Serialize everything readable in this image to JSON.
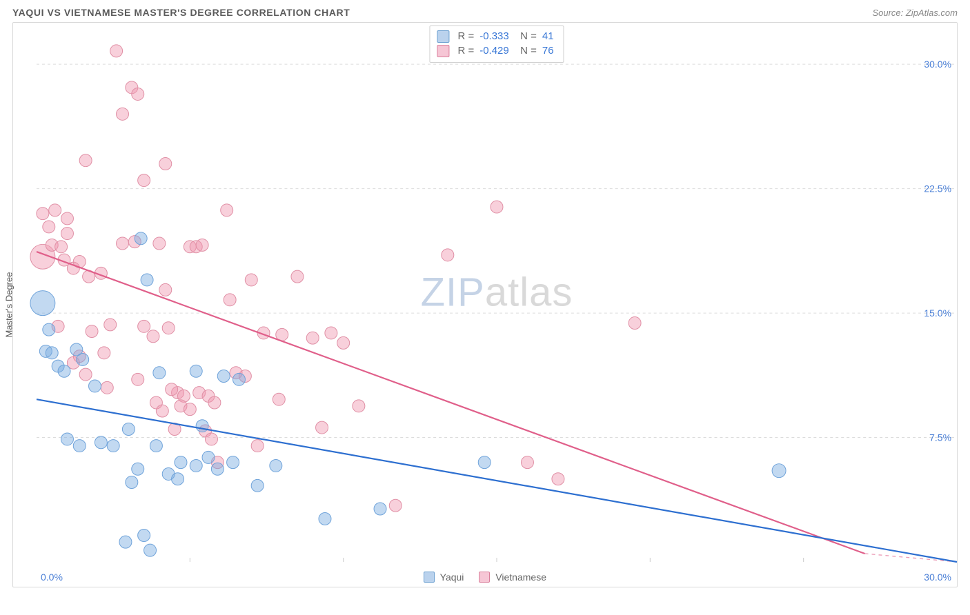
{
  "header": {
    "title": "YAQUI VS VIETNAMESE MASTER'S DEGREE CORRELATION CHART",
    "source_prefix": "Source: ",
    "source_name": "ZipAtlas.com"
  },
  "axes": {
    "y_label": "Master's Degree",
    "x_min_label": "0.0%",
    "x_max_label": "30.0%",
    "xlim": [
      0,
      30
    ],
    "ylim": [
      0,
      32.5
    ],
    "y_ticks": [
      {
        "v": 7.5,
        "label": "7.5%"
      },
      {
        "v": 15.0,
        "label": "15.0%"
      },
      {
        "v": 22.5,
        "label": "22.5%"
      },
      {
        "v": 30.0,
        "label": "30.0%"
      }
    ],
    "x_tick_step": 5,
    "tick_label_color": "#4a7fd6",
    "grid_color": "#dcdcdc"
  },
  "series": {
    "yaqui": {
      "label": "Yaqui",
      "fill": "rgba(120,170,225,0.45)",
      "stroke": "#6fa3da",
      "swatch_fill": "rgba(140,180,225,0.6)",
      "swatch_border": "#6b9fd0",
      "line_color": "#2d6fd0",
      "R": "-0.333",
      "N": "41",
      "trend": {
        "x1": 0,
        "y1": 9.8,
        "x2": 30,
        "y2": 0.0
      },
      "points": [
        {
          "x": 0.2,
          "y": 15.6,
          "r": 18
        },
        {
          "x": 0.3,
          "y": 12.7,
          "r": 9
        },
        {
          "x": 0.5,
          "y": 12.6,
          "r": 9
        },
        {
          "x": 0.7,
          "y": 11.8,
          "r": 9
        },
        {
          "x": 0.9,
          "y": 11.5,
          "r": 9
        },
        {
          "x": 0.4,
          "y": 14.0,
          "r": 9
        },
        {
          "x": 1.3,
          "y": 12.8,
          "r": 9
        },
        {
          "x": 1.5,
          "y": 12.2,
          "r": 9
        },
        {
          "x": 1.9,
          "y": 10.6,
          "r": 9
        },
        {
          "x": 1.0,
          "y": 7.4,
          "r": 9
        },
        {
          "x": 1.4,
          "y": 7.0,
          "r": 9
        },
        {
          "x": 2.1,
          "y": 7.2,
          "r": 9
        },
        {
          "x": 2.5,
          "y": 7.0,
          "r": 9
        },
        {
          "x": 3.4,
          "y": 19.5,
          "r": 9
        },
        {
          "x": 3.6,
          "y": 17.0,
          "r": 9
        },
        {
          "x": 3.0,
          "y": 8.0,
          "r": 9
        },
        {
          "x": 3.9,
          "y": 7.0,
          "r": 9
        },
        {
          "x": 3.1,
          "y": 4.8,
          "r": 9
        },
        {
          "x": 2.9,
          "y": 1.2,
          "r": 9
        },
        {
          "x": 3.5,
          "y": 1.6,
          "r": 9
        },
        {
          "x": 3.7,
          "y": 0.7,
          "r": 9
        },
        {
          "x": 4.0,
          "y": 11.4,
          "r": 9
        },
        {
          "x": 4.3,
          "y": 5.3,
          "r": 9
        },
        {
          "x": 3.3,
          "y": 5.6,
          "r": 9
        },
        {
          "x": 4.7,
          "y": 6.0,
          "r": 9
        },
        {
          "x": 4.6,
          "y": 5.0,
          "r": 9
        },
        {
          "x": 5.2,
          "y": 11.5,
          "r": 9
        },
        {
          "x": 5.4,
          "y": 8.2,
          "r": 9
        },
        {
          "x": 5.6,
          "y": 6.3,
          "r": 9
        },
        {
          "x": 5.2,
          "y": 5.8,
          "r": 9
        },
        {
          "x": 5.9,
          "y": 5.6,
          "r": 9
        },
        {
          "x": 6.4,
          "y": 6.0,
          "r": 9
        },
        {
          "x": 6.1,
          "y": 11.2,
          "r": 9
        },
        {
          "x": 6.6,
          "y": 11.0,
          "r": 9
        },
        {
          "x": 7.2,
          "y": 4.6,
          "r": 9
        },
        {
          "x": 7.8,
          "y": 5.8,
          "r": 9
        },
        {
          "x": 9.4,
          "y": 2.6,
          "r": 9
        },
        {
          "x": 11.2,
          "y": 3.2,
          "r": 9
        },
        {
          "x": 14.6,
          "y": 6.0,
          "r": 9
        },
        {
          "x": 24.2,
          "y": 5.5,
          "r": 10
        }
      ]
    },
    "vietnamese": {
      "label": "Vietnamese",
      "fill": "rgba(240,150,175,0.45)",
      "stroke": "#e08fa5",
      "swatch_fill": "rgba(240,160,185,0.6)",
      "swatch_border": "#da7f9b",
      "line_color": "#e05f8a",
      "R": "-0.429",
      "N": "76",
      "trend": {
        "x1": 0,
        "y1": 18.7,
        "x2": 27.0,
        "y2": 0.5
      },
      "trend_dash_ext": {
        "x1": 27.0,
        "y1": 0.5,
        "x2": 30.0,
        "y2": 0.0
      },
      "points": [
        {
          "x": 0.2,
          "y": 18.4,
          "r": 18
        },
        {
          "x": 0.2,
          "y": 21.0,
          "r": 9
        },
        {
          "x": 0.4,
          "y": 20.2,
          "r": 9
        },
        {
          "x": 0.6,
          "y": 21.2,
          "r": 9
        },
        {
          "x": 0.5,
          "y": 19.1,
          "r": 9
        },
        {
          "x": 0.8,
          "y": 19.0,
          "r": 9
        },
        {
          "x": 1.0,
          "y": 19.8,
          "r": 9
        },
        {
          "x": 1.0,
          "y": 20.7,
          "r": 9
        },
        {
          "x": 0.7,
          "y": 14.2,
          "r": 9
        },
        {
          "x": 0.9,
          "y": 18.2,
          "r": 9
        },
        {
          "x": 1.6,
          "y": 24.2,
          "r": 9
        },
        {
          "x": 1.2,
          "y": 17.7,
          "r": 9
        },
        {
          "x": 1.4,
          "y": 18.1,
          "r": 9
        },
        {
          "x": 1.7,
          "y": 17.2,
          "r": 9
        },
        {
          "x": 1.2,
          "y": 12.0,
          "r": 9
        },
        {
          "x": 1.4,
          "y": 12.4,
          "r": 9
        },
        {
          "x": 1.6,
          "y": 11.3,
          "r": 9
        },
        {
          "x": 1.8,
          "y": 13.9,
          "r": 9
        },
        {
          "x": 2.3,
          "y": 10.5,
          "r": 9
        },
        {
          "x": 2.1,
          "y": 17.4,
          "r": 9
        },
        {
          "x": 2.6,
          "y": 30.8,
          "r": 9
        },
        {
          "x": 2.8,
          "y": 27.0,
          "r": 9
        },
        {
          "x": 2.8,
          "y": 19.2,
          "r": 9
        },
        {
          "x": 2.4,
          "y": 14.3,
          "r": 9
        },
        {
          "x": 2.2,
          "y": 12.6,
          "r": 9
        },
        {
          "x": 3.1,
          "y": 28.6,
          "r": 9
        },
        {
          "x": 3.3,
          "y": 28.2,
          "r": 9
        },
        {
          "x": 3.2,
          "y": 19.3,
          "r": 9
        },
        {
          "x": 3.5,
          "y": 23.0,
          "r": 9
        },
        {
          "x": 3.5,
          "y": 14.2,
          "r": 9
        },
        {
          "x": 3.3,
          "y": 11.0,
          "r": 9
        },
        {
          "x": 3.8,
          "y": 13.6,
          "r": 9
        },
        {
          "x": 3.9,
          "y": 9.6,
          "r": 9
        },
        {
          "x": 4.2,
          "y": 24.0,
          "r": 9
        },
        {
          "x": 4.0,
          "y": 19.2,
          "r": 9
        },
        {
          "x": 4.2,
          "y": 16.4,
          "r": 9
        },
        {
          "x": 4.3,
          "y": 14.1,
          "r": 9
        },
        {
          "x": 4.1,
          "y": 9.1,
          "r": 9
        },
        {
          "x": 4.5,
          "y": 8.0,
          "r": 9
        },
        {
          "x": 4.6,
          "y": 10.2,
          "r": 9
        },
        {
          "x": 4.4,
          "y": 10.4,
          "r": 9
        },
        {
          "x": 4.8,
          "y": 10.0,
          "r": 9
        },
        {
          "x": 4.7,
          "y": 9.4,
          "r": 9
        },
        {
          "x": 5.0,
          "y": 9.2,
          "r": 9
        },
        {
          "x": 5.0,
          "y": 19.0,
          "r": 9
        },
        {
          "x": 5.2,
          "y": 19.0,
          "r": 9
        },
        {
          "x": 5.4,
          "y": 19.1,
          "r": 9
        },
        {
          "x": 5.3,
          "y": 10.2,
          "r": 9
        },
        {
          "x": 5.6,
          "y": 10.0,
          "r": 9
        },
        {
          "x": 5.8,
          "y": 9.6,
          "r": 9
        },
        {
          "x": 5.5,
          "y": 7.9,
          "r": 9
        },
        {
          "x": 5.7,
          "y": 7.4,
          "r": 9
        },
        {
          "x": 5.9,
          "y": 6.0,
          "r": 9
        },
        {
          "x": 6.2,
          "y": 21.2,
          "r": 9
        },
        {
          "x": 6.3,
          "y": 15.8,
          "r": 9
        },
        {
          "x": 6.5,
          "y": 11.4,
          "r": 9
        },
        {
          "x": 6.8,
          "y": 11.2,
          "r": 9
        },
        {
          "x": 7.0,
          "y": 17.0,
          "r": 9
        },
        {
          "x": 7.4,
          "y": 13.8,
          "r": 9
        },
        {
          "x": 7.2,
          "y": 7.0,
          "r": 9
        },
        {
          "x": 7.9,
          "y": 9.8,
          "r": 9
        },
        {
          "x": 8.0,
          "y": 13.7,
          "r": 9
        },
        {
          "x": 8.5,
          "y": 17.2,
          "r": 9
        },
        {
          "x": 9.0,
          "y": 13.5,
          "r": 9
        },
        {
          "x": 9.6,
          "y": 13.8,
          "r": 9
        },
        {
          "x": 9.3,
          "y": 8.1,
          "r": 9
        },
        {
          "x": 10.0,
          "y": 13.2,
          "r": 9
        },
        {
          "x": 10.5,
          "y": 9.4,
          "r": 9
        },
        {
          "x": 11.7,
          "y": 3.4,
          "r": 9
        },
        {
          "x": 13.4,
          "y": 18.5,
          "r": 9
        },
        {
          "x": 15.0,
          "y": 21.4,
          "r": 9
        },
        {
          "x": 16.0,
          "y": 6.0,
          "r": 9
        },
        {
          "x": 17.0,
          "y": 5.0,
          "r": 9
        },
        {
          "x": 19.5,
          "y": 14.4,
          "r": 9
        }
      ]
    }
  },
  "watermark": {
    "zip": "ZIP",
    "atlas": "atlas"
  },
  "legend_bottom": [
    {
      "swatch": "yaqui",
      "label_path": "series.yaqui.label"
    },
    {
      "swatch": "vietnamese",
      "label_path": "series.vietnamese.label"
    }
  ]
}
